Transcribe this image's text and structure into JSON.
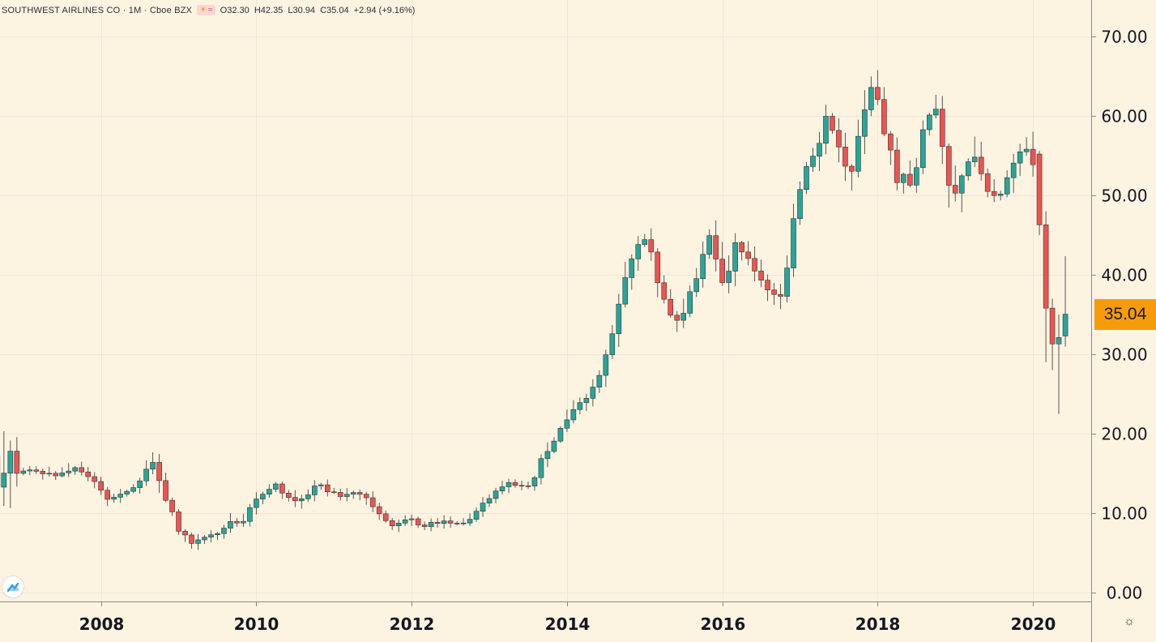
{
  "header": {
    "symbol": "SOUTHWEST AIRLINES CO · 1M · Cboe BZX",
    "open": "O32.30",
    "high": "H42.35",
    "low": "L30.94",
    "close": "C35.04",
    "change": "+2.94 (+9.16%)"
  },
  "price_tag": "35.04",
  "icons": {
    "logo": "tradingview-cloud-icon",
    "settings": "gear-icon",
    "badge_sun": "sun-icon",
    "badge_wave": "wave-icon"
  },
  "colors": {
    "background": "#fdf3e1",
    "up": "#26a69a",
    "down": "#ef5350",
    "last_price": "#f59b0c",
    "grid": "#efe6d6",
    "axis_line": "#8a8a8a"
  },
  "chart_data": {
    "type": "candlestick",
    "title": "SOUTHWEST AIRLINES CO · 1M · Cboe BZX",
    "interval": "1M",
    "ylim": [
      0,
      70
    ],
    "x_range": [
      2006.7,
      2020.75
    ],
    "y_ticks": [
      "0.00",
      "10.00",
      "20.00",
      "30.00",
      "40.00",
      "50.00",
      "60.00",
      "70.00"
    ],
    "x_ticks": [
      "2008",
      "2010",
      "2012",
      "2014",
      "2016",
      "2018",
      "2020"
    ],
    "grid": true,
    "last_price": 35.04,
    "anchors": [
      [
        2006.7,
        17.2,
        16.0
      ],
      [
        2007.0,
        15.5,
        1.0
      ],
      [
        2007.5,
        14.8,
        1.2
      ],
      [
        2007.7,
        15.7,
        1.5
      ],
      [
        2007.9,
        14.6,
        1.0
      ],
      [
        2008.1,
        12.0,
        1.5
      ],
      [
        2008.3,
        12.3,
        1.0
      ],
      [
        2008.5,
        13.3,
        1.0
      ],
      [
        2008.6,
        15.5,
        1.5
      ],
      [
        2008.7,
        16.2,
        2.0
      ],
      [
        2008.8,
        14.0,
        2.5
      ],
      [
        2008.9,
        11.5,
        2.5
      ],
      [
        2009.0,
        8.5,
        1.8
      ],
      [
        2009.2,
        6.2,
        1.8
      ],
      [
        2009.4,
        7.0,
        1.0
      ],
      [
        2009.6,
        7.5,
        1.0
      ],
      [
        2009.7,
        9.0,
        1.5
      ],
      [
        2009.9,
        9.2,
        1.2
      ],
      [
        2010.0,
        11.5,
        1.5
      ],
      [
        2010.2,
        13.0,
        1.0
      ],
      [
        2010.3,
        13.5,
        1.0
      ],
      [
        2010.5,
        11.5,
        1.5
      ],
      [
        2010.7,
        12.0,
        1.5
      ],
      [
        2010.8,
        13.8,
        1.0
      ],
      [
        2010.9,
        13.2,
        1.0
      ],
      [
        2011.1,
        12.2,
        1.0
      ],
      [
        2011.3,
        12.5,
        1.0
      ],
      [
        2011.5,
        11.5,
        1.2
      ],
      [
        2011.7,
        9.0,
        1.2
      ],
      [
        2011.8,
        8.2,
        1.0
      ],
      [
        2012.0,
        9.2,
        1.0
      ],
      [
        2012.2,
        8.5,
        1.0
      ],
      [
        2012.4,
        9.0,
        1.0
      ],
      [
        2012.6,
        8.8,
        0.8
      ],
      [
        2012.8,
        9.0,
        1.0
      ],
      [
        2012.9,
        10.5,
        1.0
      ],
      [
        2013.1,
        12.5,
        1.0
      ],
      [
        2013.3,
        14.0,
        1.0
      ],
      [
        2013.5,
        13.0,
        1.0
      ],
      [
        2013.6,
        14.0,
        1.0
      ],
      [
        2013.7,
        17.0,
        2.0
      ],
      [
        2013.9,
        19.0,
        1.2
      ],
      [
        2014.0,
        21.5,
        2.0
      ],
      [
        2014.2,
        23.5,
        1.5
      ],
      [
        2014.4,
        26.0,
        1.5
      ],
      [
        2014.5,
        28.5,
        2.0
      ],
      [
        2014.6,
        32.0,
        3.0
      ],
      [
        2014.7,
        35.0,
        3.5
      ],
      [
        2014.8,
        40.0,
        4.0
      ],
      [
        2015.0,
        44.5,
        2.5
      ],
      [
        2015.1,
        44.0,
        2.5
      ],
      [
        2015.2,
        40.0,
        3.0
      ],
      [
        2015.3,
        36.0,
        3.5
      ],
      [
        2015.4,
        34.0,
        3.5
      ],
      [
        2015.6,
        36.5,
        2.5
      ],
      [
        2015.8,
        43.0,
        3.0
      ],
      [
        2015.9,
        45.5,
        3.5
      ],
      [
        2016.0,
        40.0,
        4.0
      ],
      [
        2016.1,
        40.0,
        4.0
      ],
      [
        2016.2,
        43.5,
        3.0
      ],
      [
        2016.4,
        42.0,
        3.0
      ],
      [
        2016.5,
        39.5,
        3.0
      ],
      [
        2016.6,
        37.5,
        2.5
      ],
      [
        2016.8,
        37.5,
        2.5
      ],
      [
        2016.9,
        42.0,
        3.0
      ],
      [
        2017.0,
        50.0,
        3.0
      ],
      [
        2017.1,
        53.5,
        3.0
      ],
      [
        2017.3,
        57.0,
        3.0
      ],
      [
        2017.4,
        60.0,
        3.5
      ],
      [
        2017.5,
        57.0,
        4.0
      ],
      [
        2017.6,
        54.0,
        4.0
      ],
      [
        2017.7,
        53.5,
        4.0
      ],
      [
        2017.8,
        57.0,
        4.0
      ],
      [
        2017.9,
        63.0,
        4.0
      ],
      [
        2018.0,
        63.5,
        4.0
      ],
      [
        2018.1,
        59.0,
        3.0
      ],
      [
        2018.2,
        55.5,
        3.0
      ],
      [
        2018.3,
        52.0,
        3.0
      ],
      [
        2018.5,
        52.0,
        3.0
      ],
      [
        2018.6,
        57.0,
        3.5
      ],
      [
        2018.8,
        61.5,
        3.0
      ],
      [
        2018.9,
        55.0,
        6.0
      ],
      [
        2019.0,
        50.0,
        4.0
      ],
      [
        2019.1,
        53.0,
        5.0
      ],
      [
        2019.2,
        55.0,
        4.0
      ],
      [
        2019.4,
        53.0,
        4.0
      ],
      [
        2019.5,
        49.0,
        3.0
      ],
      [
        2019.7,
        51.5,
        2.0
      ],
      [
        2019.8,
        54.0,
        3.0
      ],
      [
        2019.9,
        56.5,
        2.5
      ],
      [
        2020.0,
        55.0,
        3.0
      ],
      [
        2020.1,
        50.0,
        6.0
      ],
      [
        2020.2,
        38.0,
        7.0
      ],
      [
        2020.3,
        32.0,
        7.0
      ],
      [
        2020.4,
        33.0,
        6.0
      ]
    ],
    "last_candles": [
      {
        "t": 2020.083,
        "o": 55.2,
        "h": 55.6,
        "l": 45.0,
        "c": 46.3
      },
      {
        "t": 2020.167,
        "o": 46.3,
        "h": 48.0,
        "l": 29.0,
        "c": 35.8
      },
      {
        "t": 2020.25,
        "o": 35.8,
        "h": 37.0,
        "l": 28.0,
        "c": 31.3
      },
      {
        "t": 2020.333,
        "o": 31.3,
        "h": 35.0,
        "l": 22.5,
        "c": 32.1
      },
      {
        "t": 2020.417,
        "o": 32.3,
        "h": 42.35,
        "l": 30.94,
        "c": 35.04
      }
    ]
  }
}
